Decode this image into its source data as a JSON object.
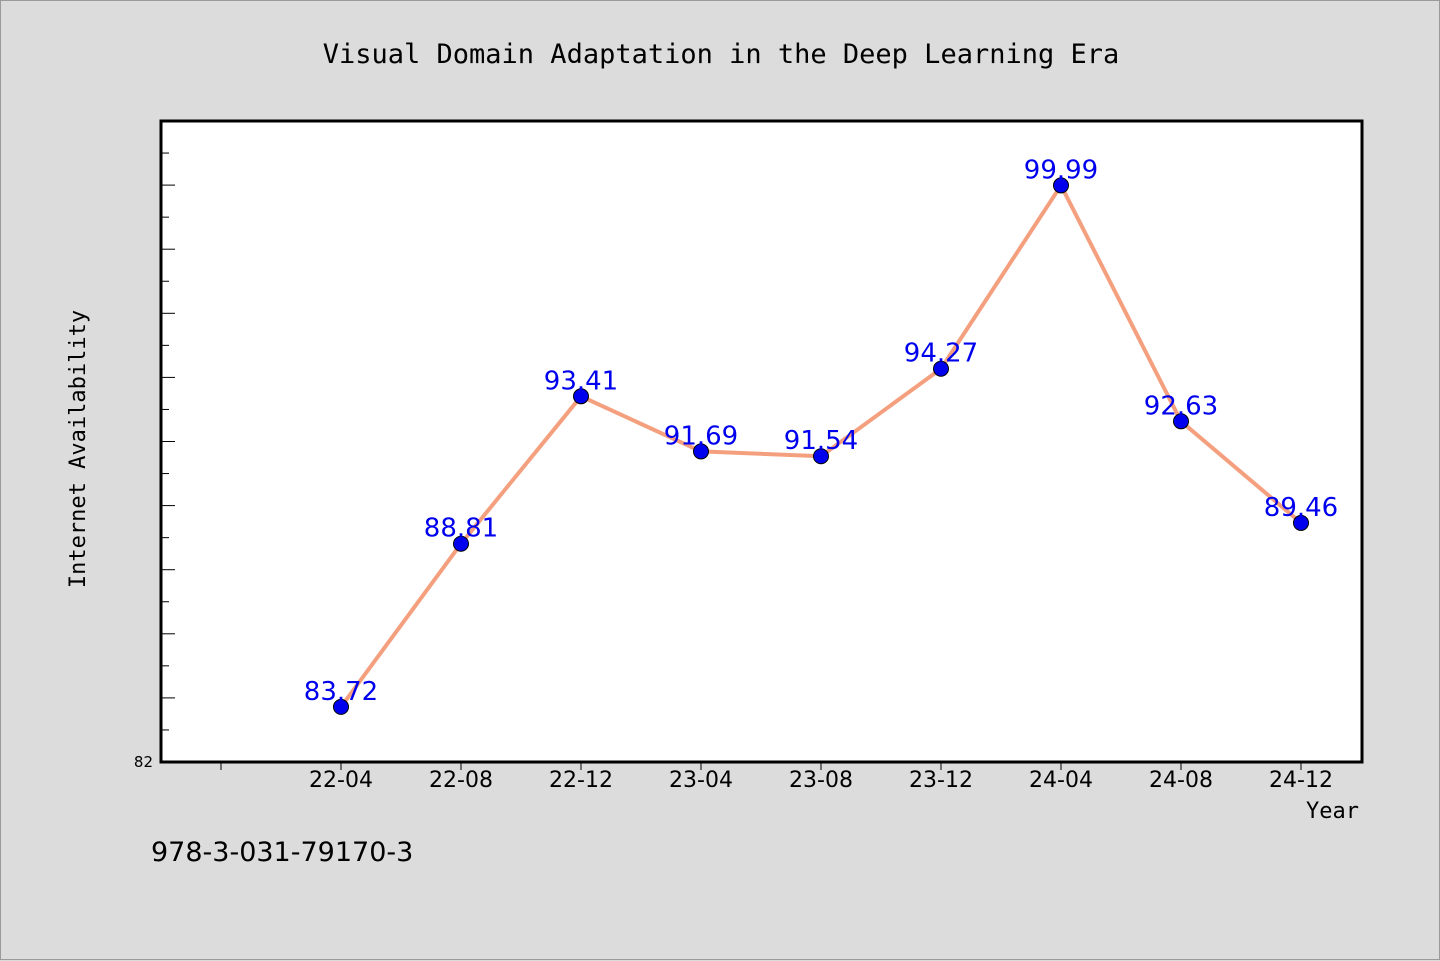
{
  "chart_data": {
    "type": "line",
    "title": "Visual Domain Adaptation in the Deep Learning Era",
    "xlabel": "Year",
    "ylabel": "Internet Availability",
    "categories": [
      "22-04",
      "22-08",
      "22-12",
      "23-04",
      "23-08",
      "23-12",
      "24-04",
      "24-08",
      "24-12"
    ],
    "series": [
      {
        "values": [
          83.72,
          88.81,
          93.41,
          91.69,
          91.54,
          94.27,
          99.99,
          92.63,
          89.46
        ]
      }
    ],
    "value_labels": [
      "83.72",
      "88.81",
      "93.41",
      "91.69",
      "91.54",
      "94.27",
      "99.99",
      "92.63",
      "89.46"
    ],
    "ylim": [
      82,
      102
    ],
    "y_tick_labels": [
      "82"
    ],
    "grid": false,
    "legend": "none",
    "colors": {
      "line": "#f4a07f",
      "marker": "#0000ee",
      "data_label": "#0000ee",
      "plot_background": "#ffffff",
      "figure_background": "#dcdcdc"
    }
  },
  "footer": {
    "isbn": "978-3-031-79170-3"
  }
}
